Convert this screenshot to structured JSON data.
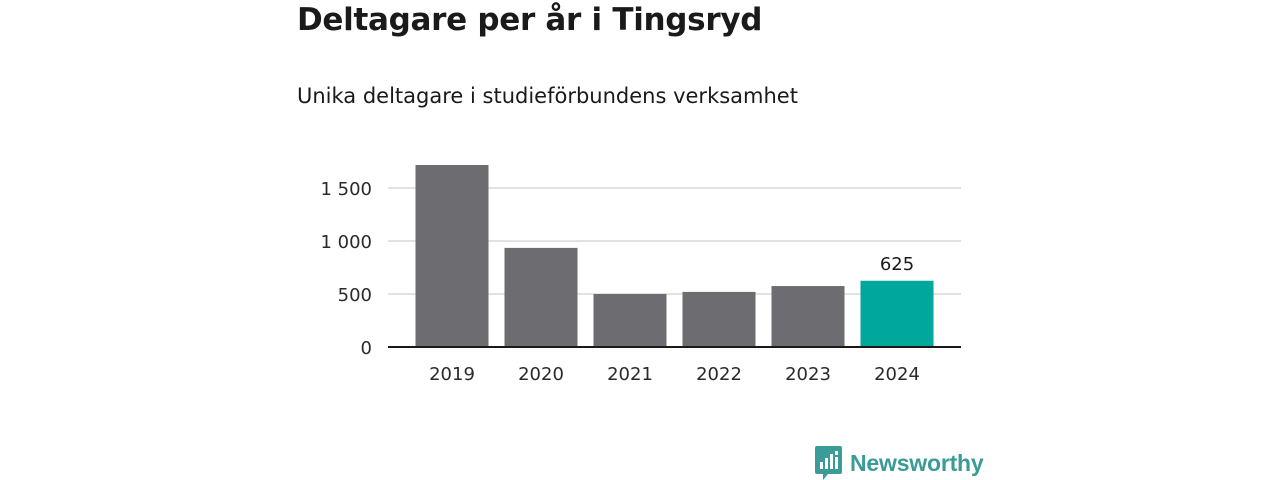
{
  "header": {
    "title": "Deltagare per år i Tingsryd",
    "subtitle": "Unika deltagare i studieförbundens verksamhet"
  },
  "brand": {
    "name": "Newsworthy",
    "icon": "newsworthy-logo-icon",
    "color": "#3a9b97"
  },
  "chart_data": {
    "type": "bar",
    "title": "Deltagare per år i Tingsryd",
    "subtitle": "Unika deltagare i studieförbundens verksamhet",
    "categories": [
      "2019",
      "2020",
      "2021",
      "2022",
      "2023",
      "2024"
    ],
    "values": [
      1720,
      935,
      500,
      520,
      575,
      625
    ],
    "ylim": [
      0,
      1650
    ],
    "yticks": [
      0,
      500,
      1000,
      1500
    ],
    "ytick_labels": [
      "0",
      "500",
      "1 000",
      "1 500"
    ],
    "data_labels": [
      {
        "index": 5,
        "text": "625"
      }
    ],
    "colors": {
      "default": "#6d6c71",
      "highlight": "#00a79b",
      "grid": "#d9d9d9",
      "axis": "#1a1a1a"
    },
    "highlight_index": 5,
    "grid": true
  }
}
